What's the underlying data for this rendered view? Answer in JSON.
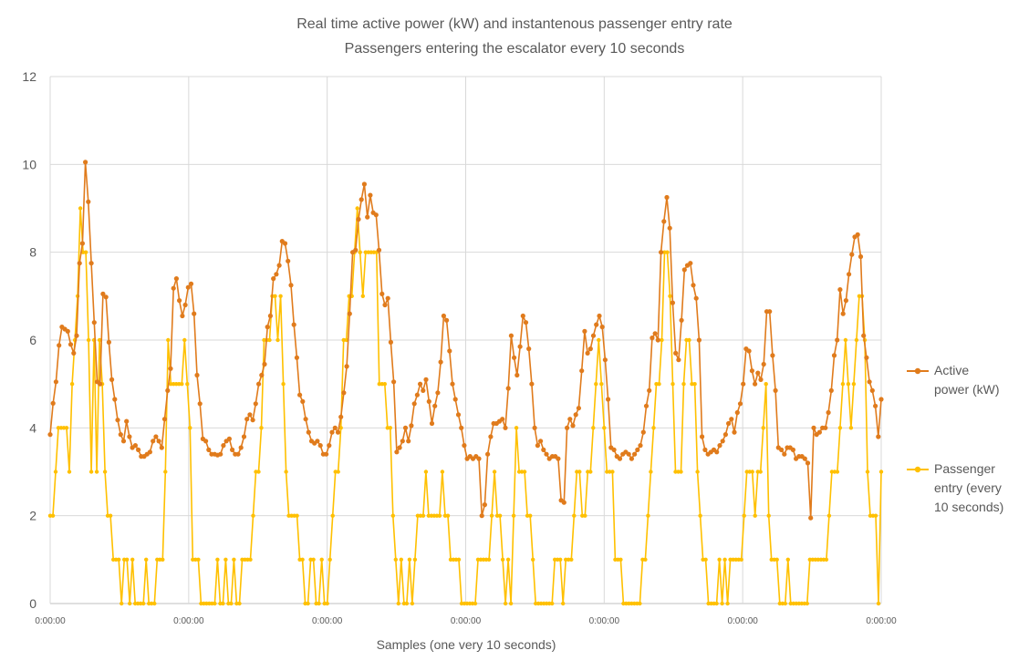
{
  "chart_data": {
    "type": "line",
    "title": "Real time active power (kW) and instantenous passenger entry rate",
    "subtitle": "Passengers entering the escalator every 10 seconds",
    "xlabel": "Samples (one very 10 seconds)",
    "ylabel": "",
    "ylim": [
      0,
      12
    ],
    "yticks": [
      "0",
      "2",
      "4",
      "6",
      "8",
      "10",
      "12"
    ],
    "xtick_labels": [
      "0:00:00",
      "0:00:00",
      "0:00:00",
      "0:00:00",
      "0:00:00",
      "0:00:00",
      "0:00:00"
    ],
    "grid": true,
    "legend_position": "right",
    "series": [
      {
        "name": "Active power (kW)",
        "legend_lines": [
          "Active",
          "power (kW)"
        ],
        "color": "#E07B1C",
        "values": [
          3.85,
          4.56,
          5.05,
          5.88,
          6.3,
          6.25,
          6.2,
          5.9,
          5.7,
          6.1,
          7.75,
          8.2,
          10.05,
          9.15,
          7.75,
          6.4,
          5.05,
          5.0,
          7.05,
          6.98,
          5.95,
          5.1,
          4.65,
          4.18,
          3.85,
          3.7,
          4.15,
          3.8,
          3.55,
          3.6,
          3.5,
          3.35,
          3.35,
          3.4,
          3.45,
          3.7,
          3.8,
          3.7,
          3.55,
          4.2,
          4.85,
          5.35,
          7.18,
          7.4,
          6.9,
          6.55,
          6.8,
          7.2,
          7.28,
          6.6,
          5.2,
          4.55,
          3.75,
          3.7,
          3.5,
          3.4,
          3.4,
          3.38,
          3.4,
          3.6,
          3.7,
          3.75,
          3.5,
          3.4,
          3.4,
          3.55,
          3.8,
          4.2,
          4.3,
          4.18,
          4.55,
          5.0,
          5.2,
          5.45,
          6.3,
          6.55,
          7.4,
          7.5,
          7.7,
          8.25,
          8.2,
          7.8,
          7.25,
          6.35,
          5.6,
          4.75,
          4.6,
          4.2,
          3.9,
          3.7,
          3.65,
          3.7,
          3.6,
          3.4,
          3.4,
          3.6,
          3.9,
          4.0,
          3.9,
          4.25,
          4.8,
          5.4,
          6.6,
          8.0,
          8.05,
          8.75,
          9.2,
          9.55,
          8.8,
          9.3,
          8.9,
          8.85,
          8.05,
          7.05,
          6.8,
          6.95,
          5.95,
          5.05,
          3.45,
          3.55,
          3.7,
          4.0,
          3.7,
          4.05,
          4.55,
          4.75,
          5.0,
          4.85,
          5.1,
          4.6,
          4.1,
          4.5,
          4.8,
          5.5,
          6.55,
          6.45,
          5.75,
          5.0,
          4.65,
          4.3,
          4.0,
          3.6,
          3.3,
          3.35,
          3.3,
          3.35,
          3.3,
          2.0,
          2.25,
          3.4,
          3.8,
          4.1,
          4.1,
          4.15,
          4.2,
          4.0,
          4.9,
          6.1,
          5.6,
          5.2,
          5.85,
          6.55,
          6.4,
          5.8,
          5.0,
          4.0,
          3.6,
          3.7,
          3.5,
          3.4,
          3.3,
          3.35,
          3.35,
          3.3,
          2.35,
          2.3,
          4.0,
          4.2,
          4.05,
          4.3,
          4.45,
          5.3,
          6.2,
          5.7,
          5.8,
          6.1,
          6.35,
          6.55,
          6.3,
          5.55,
          4.65,
          3.55,
          3.5,
          3.35,
          3.3,
          3.4,
          3.45,
          3.4,
          3.3,
          3.4,
          3.5,
          3.6,
          3.9,
          4.5,
          4.85,
          6.05,
          6.15,
          6.0,
          8.0,
          8.7,
          9.25,
          8.55,
          6.85,
          5.7,
          5.55,
          6.45,
          7.6,
          7.7,
          7.75,
          7.25,
          6.95,
          6.0,
          3.8,
          3.5,
          3.4,
          3.45,
          3.5,
          3.45,
          3.6,
          3.7,
          3.85,
          4.1,
          4.2,
          3.9,
          4.35,
          4.55,
          5.0,
          5.8,
          5.75,
          5.3,
          5.0,
          5.25,
          5.1,
          5.45,
          6.65,
          6.65,
          5.65,
          4.85,
          3.55,
          3.5,
          3.4,
          3.55,
          3.55,
          3.5,
          3.3,
          3.35,
          3.35,
          3.3,
          3.2,
          1.95,
          4.0,
          3.85,
          3.9,
          4.0,
          4.0,
          4.35,
          4.85,
          5.65,
          6.0,
          7.15,
          6.6,
          6.9,
          7.5,
          7.95,
          8.35,
          8.4,
          7.9,
          6.1,
          5.6,
          5.05,
          4.85,
          4.5,
          3.8,
          4.65
        ]
      },
      {
        "name": "Passenger entry (every 10 seconds)",
        "legend_lines": [
          "Passenger",
          "entry (every",
          "10 seconds)"
        ],
        "color": "#FFC000",
        "values": [
          2,
          2,
          3,
          4,
          4,
          4,
          4,
          3,
          5,
          6,
          7,
          9,
          8,
          8,
          6,
          3,
          6,
          3,
          6,
          5,
          3,
          2,
          2,
          1,
          1,
          1,
          0,
          1,
          1,
          0,
          1,
          0,
          0,
          0,
          0,
          1,
          0,
          0,
          0,
          1,
          1,
          1,
          3,
          6,
          5,
          5,
          5,
          5,
          5,
          6,
          5,
          4,
          1,
          1,
          1,
          0,
          0,
          0,
          0,
          0,
          0,
          1,
          0,
          0,
          1,
          0,
          0,
          1,
          0,
          0,
          1,
          1,
          1,
          1,
          2,
          3,
          3,
          4,
          6,
          6,
          6,
          7,
          7,
          6,
          7,
          5,
          3,
          2,
          2,
          2,
          2,
          1,
          1,
          0,
          0,
          1,
          1,
          0,
          0,
          1,
          0,
          0,
          1,
          2,
          3,
          3,
          4,
          6,
          6,
          7,
          7,
          8,
          9,
          8,
          7,
          8,
          8,
          8,
          8,
          8,
          5,
          5,
          5,
          4,
          4,
          2,
          1,
          0,
          1,
          0,
          0,
          1,
          0,
          1,
          2,
          2,
          2,
          3,
          2,
          2,
          2,
          2,
          2,
          3,
          2,
          2,
          1,
          1,
          1,
          1,
          0,
          0,
          0,
          0,
          0,
          0,
          1,
          1,
          1,
          1,
          1,
          2,
          3,
          2,
          2,
          1,
          0,
          1,
          0,
          2,
          4,
          3,
          3,
          3,
          2,
          2,
          1,
          0,
          0,
          0,
          0,
          0,
          0,
          0,
          1,
          1,
          1,
          0,
          1,
          1,
          1,
          2,
          3,
          3,
          2,
          2,
          3,
          3,
          4,
          5,
          6,
          5,
          4,
          3,
          3,
          3,
          1,
          1,
          1,
          0,
          0,
          0,
          0,
          0,
          0,
          0,
          1,
          1,
          2,
          3,
          4,
          5,
          5,
          6,
          8,
          8,
          7,
          5,
          3,
          3,
          3,
          5,
          6,
          6,
          5,
          5,
          3,
          2,
          1,
          1,
          0,
          0,
          0,
          0,
          1,
          0,
          1,
          0,
          1,
          1,
          1,
          1,
          1,
          2,
          3,
          3,
          3,
          2,
          3,
          3,
          4,
          5,
          2,
          1,
          1,
          1,
          0,
          0,
          0,
          1,
          0,
          0,
          0,
          0,
          0,
          0,
          0,
          1,
          1,
          1,
          1,
          1,
          1,
          1,
          2,
          3,
          3,
          3,
          4,
          5,
          6,
          5,
          4,
          5,
          6,
          7,
          7,
          6,
          3,
          2,
          2,
          2,
          0,
          3
        ]
      }
    ]
  }
}
